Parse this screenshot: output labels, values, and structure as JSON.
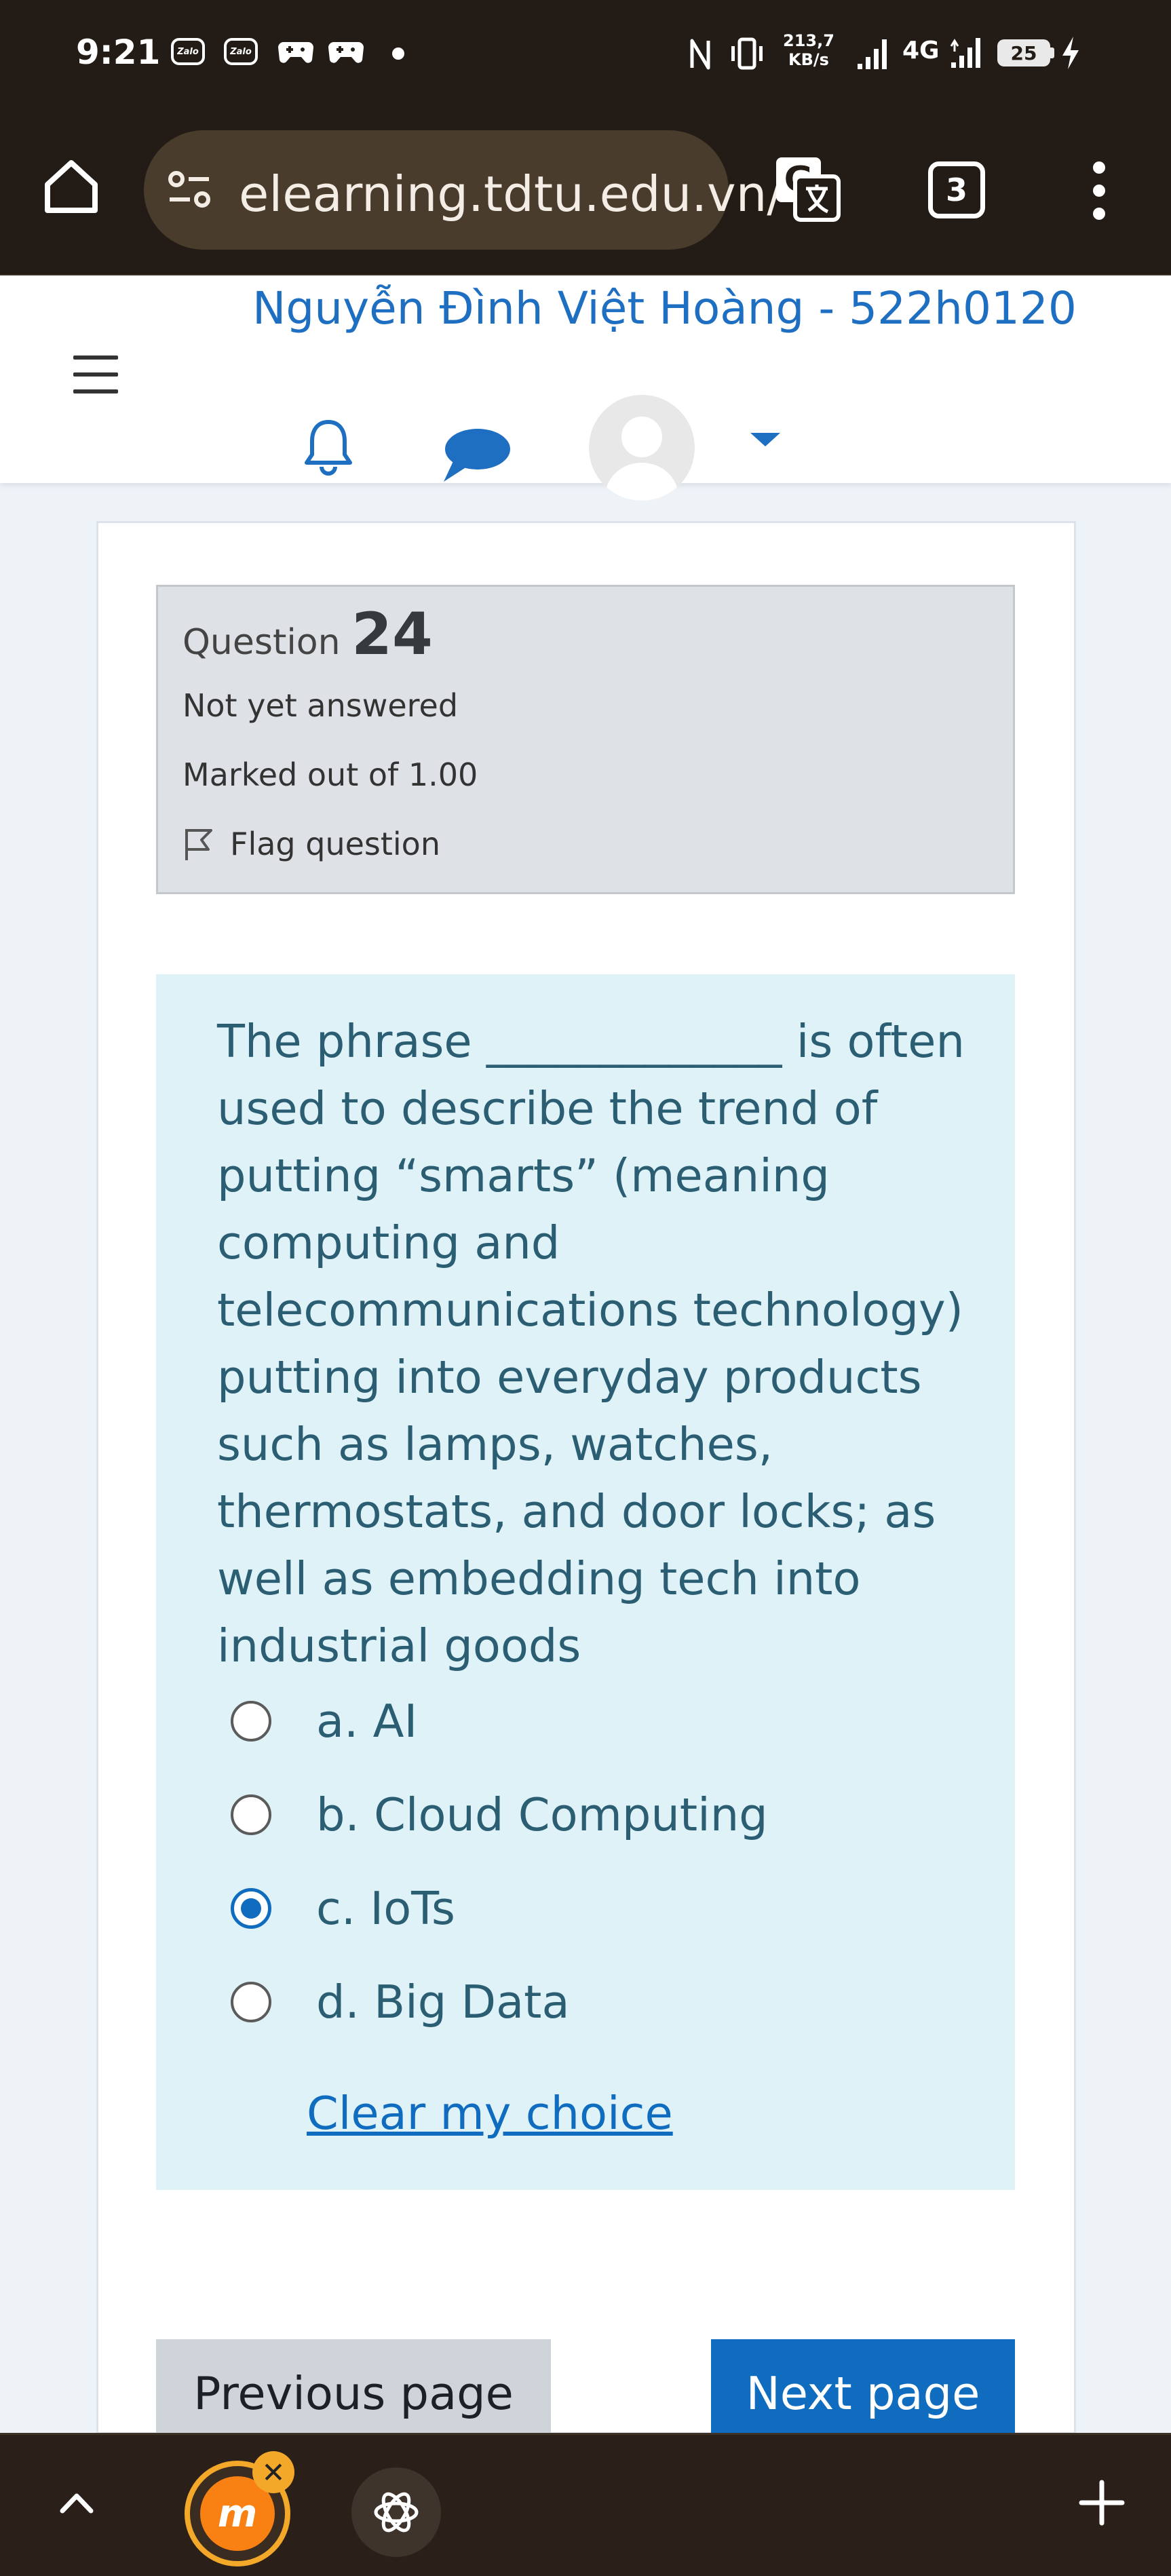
{
  "status_bar": {
    "time": "9:21",
    "zalo_label": "Zalo",
    "net_speed_value": "213,7",
    "net_speed_unit": "KB/s",
    "network_type": "4G",
    "battery_level": "25"
  },
  "browser": {
    "url": "elearning.tdtu.edu.vn/",
    "tab_count": "3"
  },
  "header": {
    "user_name": "Nguyễn Đình Việt Hoàng - 522h0120"
  },
  "question": {
    "label": "Question",
    "number": "24",
    "state": "Not yet answered",
    "grade": "Marked out of 1.00",
    "flag_label": "Flag question",
    "text": "The phrase _____________ is often used to describe the trend of putting “smarts” (meaning computing and telecommunications technology) putting into everyday products such as lamps, watches, thermostats, and door locks; as well as embedding tech into industrial goods",
    "answers": [
      {
        "label": "a. AI",
        "selected": false
      },
      {
        "label": "b. Cloud Computing",
        "selected": false
      },
      {
        "label": "c. IoTs",
        "selected": true
      },
      {
        "label": "d. Big Data",
        "selected": false
      }
    ],
    "clear_label": "Clear my choice"
  },
  "navigation": {
    "prev_label": "Previous page",
    "next_label": "Next page"
  },
  "colors": {
    "accent": "#0f6cbf",
    "question_text": "#2b5e73",
    "formulation_bg": "#def2f8",
    "info_bg": "#dee2e6",
    "browser_chrome": "#231c16"
  }
}
